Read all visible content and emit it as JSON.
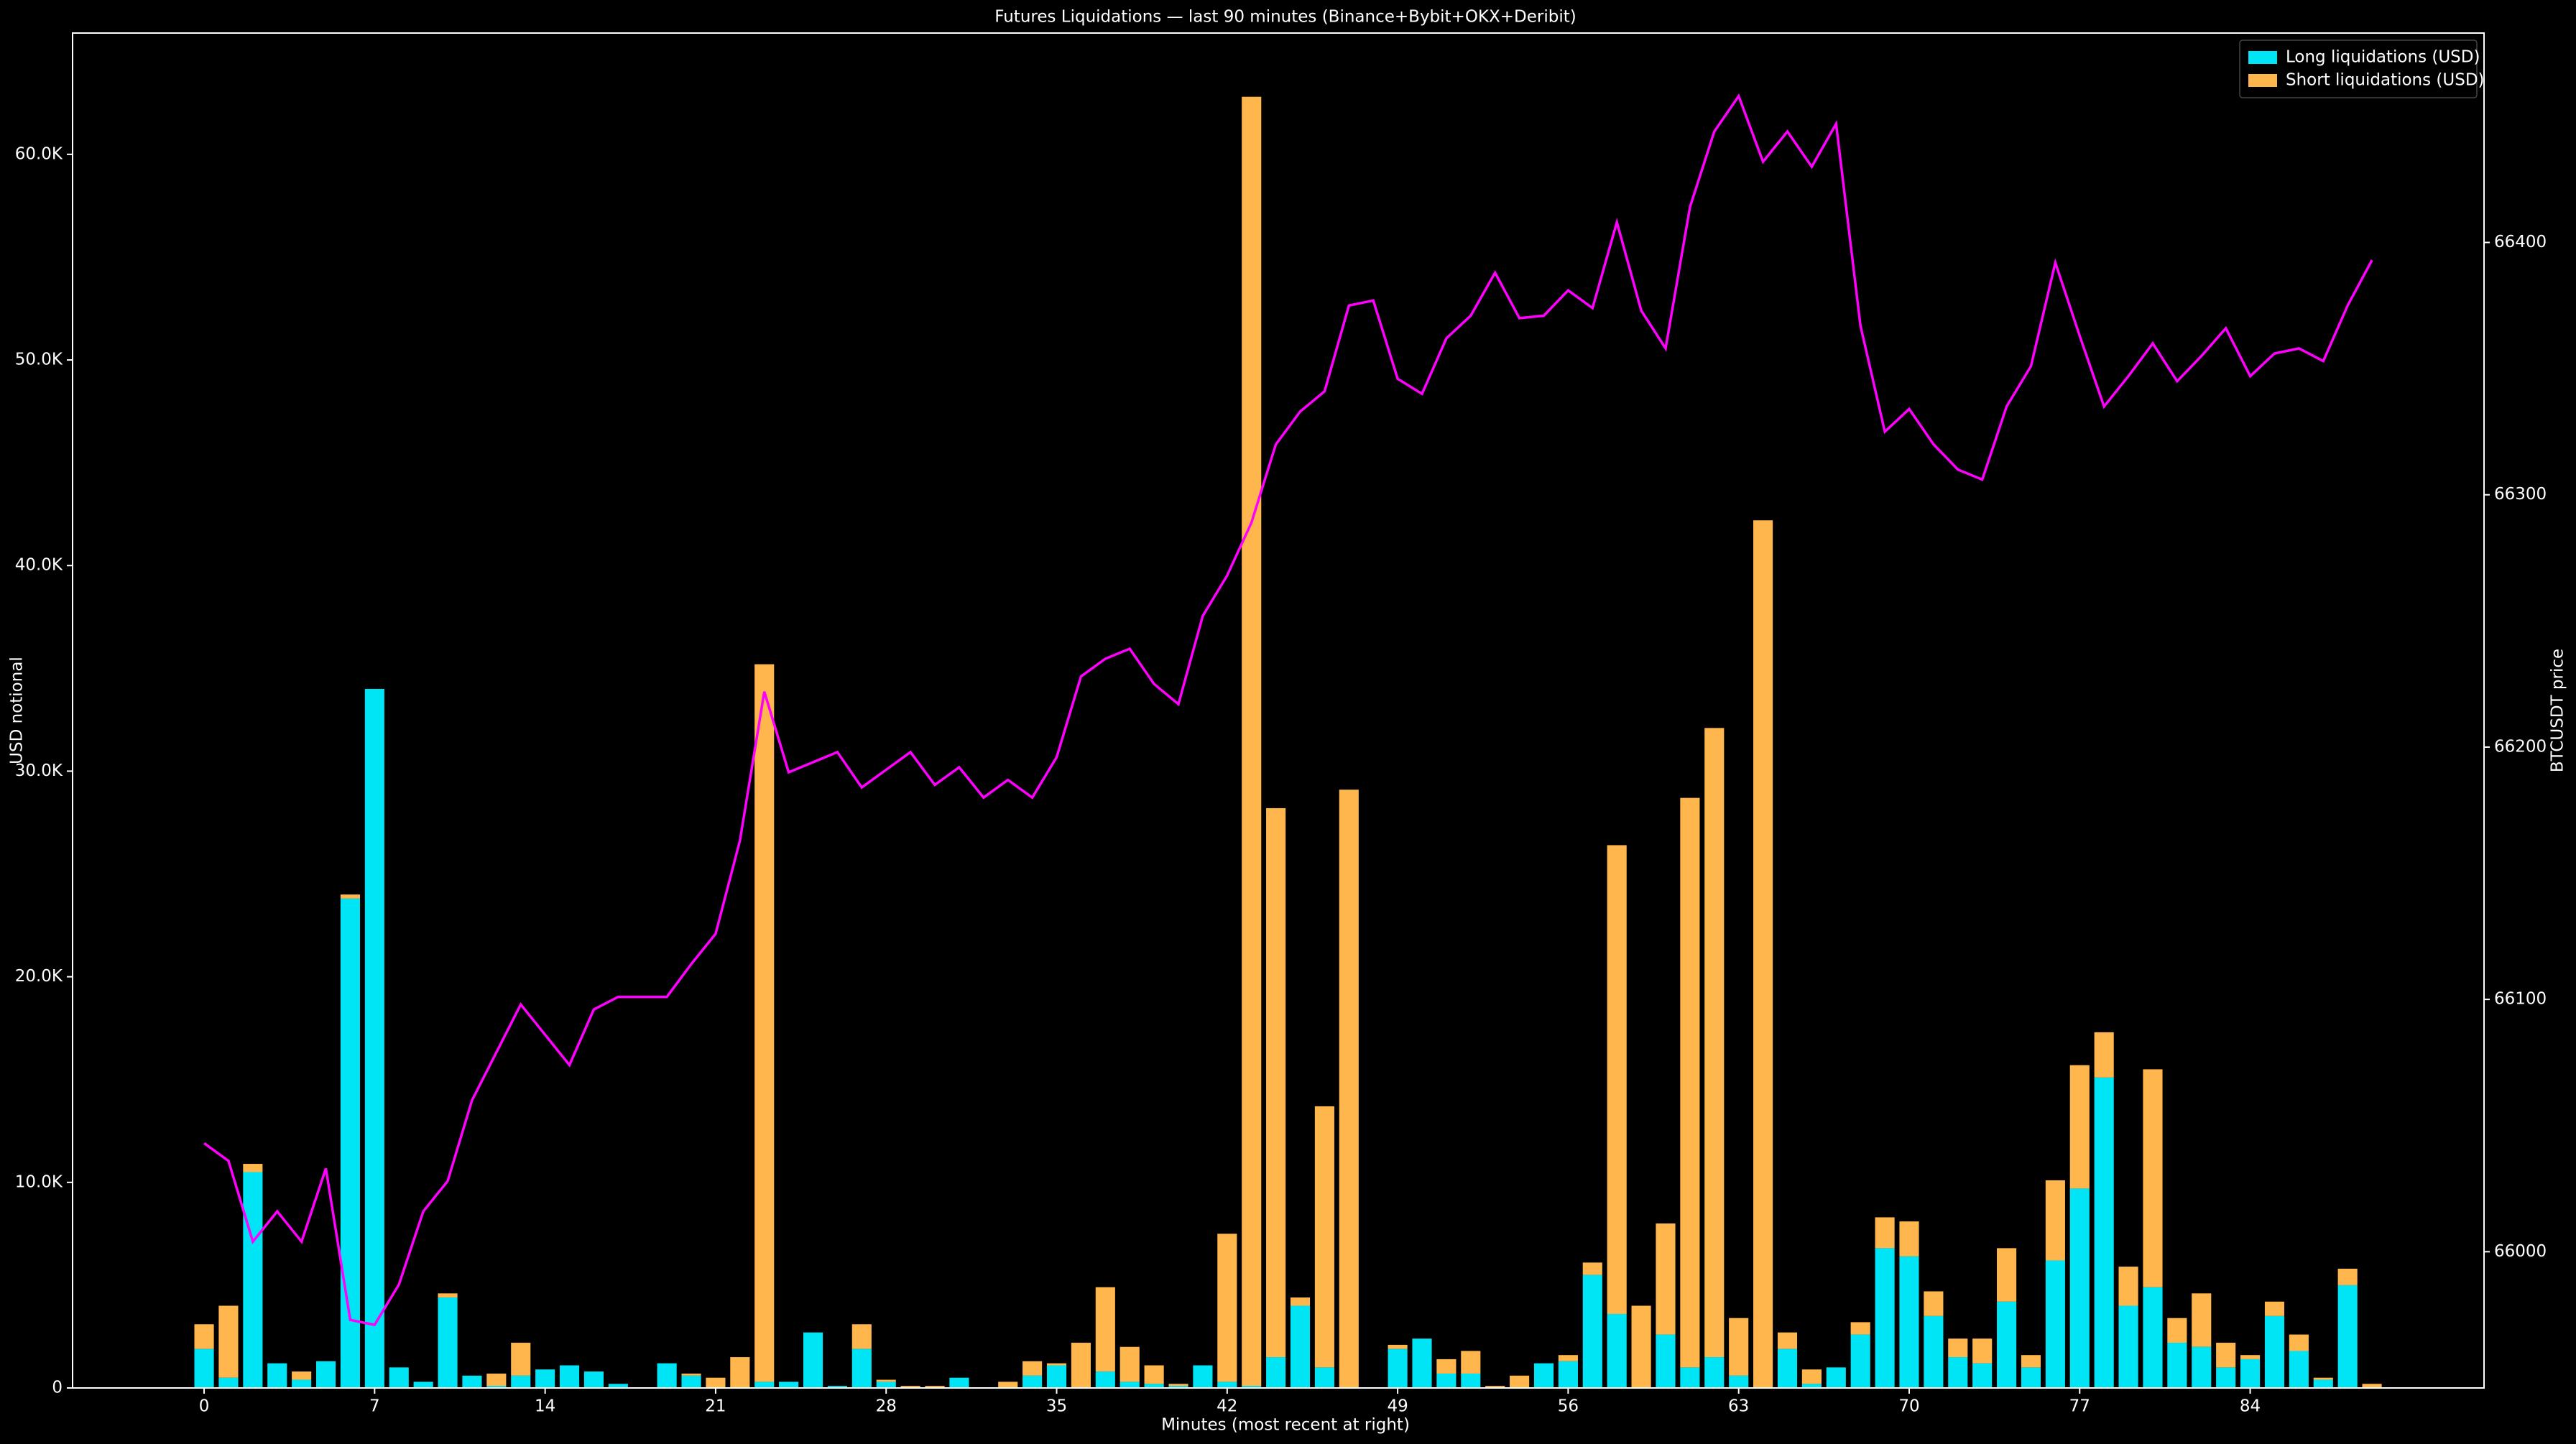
{
  "chart_data": {
    "type": "bar",
    "stacked": true,
    "title": "Futures Liquidations — last 90 minutes (Binance+Bybit+OKX+Deribit)",
    "xlabel": "Minutes (most recent at right)",
    "ylabel": "USD notional",
    "y2label": "BTCUSDT price",
    "x": [
      0,
      1,
      2,
      3,
      4,
      5,
      6,
      7,
      8,
      9,
      10,
      11,
      12,
      13,
      14,
      15,
      16,
      17,
      18,
      19,
      20,
      21,
      22,
      23,
      24,
      25,
      26,
      27,
      28,
      29,
      30,
      31,
      32,
      33,
      34,
      35,
      36,
      37,
      38,
      39,
      40,
      41,
      42,
      43,
      44,
      45,
      46,
      47,
      48,
      49,
      50,
      51,
      52,
      53,
      54,
      55,
      56,
      57,
      58,
      59,
      60,
      61,
      62,
      63,
      64,
      65,
      66,
      67,
      68,
      69,
      70,
      71,
      72,
      73,
      74,
      75,
      76,
      77,
      78,
      79,
      80,
      81,
      82,
      83,
      84,
      85,
      86,
      87,
      88,
      89
    ],
    "xlim": [
      -5.4,
      93.6
    ],
    "xticks": [
      0,
      7,
      14,
      21,
      28,
      35,
      42,
      49,
      56,
      63,
      70,
      77,
      84
    ],
    "ylim": [
      0,
      65900
    ],
    "yticks": [
      0,
      {
        "value": 10000,
        "label": "10.0K"
      },
      {
        "value": 20000,
        "label": "20.0K"
      },
      {
        "value": 30000,
        "label": "30.0K"
      },
      {
        "value": 40000,
        "label": "40.0K"
      },
      {
        "value": 50000,
        "label": "50.0K"
      },
      {
        "value": 60000,
        "label": "60.0K"
      }
    ],
    "y2lim": [
      65946,
      66483
    ],
    "y2ticks": [
      66000,
      66100,
      66200,
      66300,
      66400
    ],
    "legend": "upper right",
    "series": [
      {
        "name": "Long liquidations (USD)",
        "color": "#00e5f5",
        "values": [
          1900,
          500,
          10500,
          1200,
          400,
          1300,
          23800,
          34000,
          1000,
          300,
          4400,
          600,
          100,
          600,
          900,
          1100,
          800,
          200,
          0,
          1200,
          600,
          0,
          0,
          300,
          300,
          2700,
          100,
          1900,
          300,
          0,
          0,
          500,
          0,
          0,
          600,
          1100,
          0,
          800,
          300,
          200,
          100,
          1100,
          300,
          100,
          1500,
          4000,
          1000,
          0,
          0,
          1900,
          2400,
          700,
          700,
          0,
          0,
          1200,
          1300,
          5500,
          3600,
          0,
          2600,
          1000,
          1500,
          600,
          0,
          1900,
          200,
          1000,
          2600,
          6800,
          6400,
          3500,
          1500,
          1200,
          4200,
          1000,
          6200,
          9700,
          15100,
          4000,
          4900,
          2200,
          2000,
          1000,
          1400,
          3500,
          1800,
          400,
          5000,
          0
        ]
      },
      {
        "name": "Short liquidations (USD)",
        "color": "#ffb74d",
        "values": [
          1200,
          3500,
          400,
          0,
          400,
          0,
          200,
          0,
          0,
          0,
          200,
          0,
          600,
          1600,
          0,
          0,
          0,
          0,
          0,
          0,
          100,
          500,
          1500,
          34900,
          0,
          0,
          0,
          1200,
          100,
          100,
          100,
          0,
          0,
          300,
          700,
          100,
          2200,
          4100,
          1700,
          900,
          100,
          0,
          7200,
          62700,
          26700,
          400,
          12700,
          29100,
          0,
          200,
          0,
          700,
          1100,
          100,
          600,
          0,
          300,
          600,
          22800,
          4000,
          5400,
          27700,
          30600,
          2800,
          42200,
          800,
          700,
          0,
          600,
          1500,
          1700,
          1200,
          900,
          1200,
          2600,
          600,
          3900,
          6000,
          2200,
          1900,
          10600,
          1200,
          2600,
          1200,
          200,
          700,
          800,
          100,
          800,
          200
        ]
      },
      {
        "type": "line",
        "axis": "y2",
        "color": "#ff00ff",
        "values": [
          66043,
          66036,
          66004,
          66016,
          66004,
          66033,
          65973,
          65971,
          65987,
          66016,
          66028,
          66060,
          66079,
          66098,
          66086,
          66074,
          66096,
          66101,
          66101,
          66101,
          66114,
          66126,
          66163,
          66222,
          66190,
          66194,
          66198,
          66184,
          66191,
          66198,
          66185,
          66192,
          66180,
          66187,
          66180,
          66196,
          66228,
          66235,
          66239,
          66225,
          66217,
          66252,
          66268,
          66289,
          66320,
          66333,
          66341,
          66375,
          66377,
          66346,
          66340,
          66362,
          66371,
          66388,
          66370,
          66371,
          66381,
          66374,
          66408,
          66373,
          66358,
          66414,
          66444,
          66458,
          66432,
          66444,
          66430,
          66447,
          66367,
          66325,
          66334,
          66320,
          66310,
          66306,
          66335,
          66351,
          66392,
          66363,
          66335,
          66347,
          66360,
          66345,
          66355,
          66366,
          66347,
          66356,
          66358,
          66353,
          66375,
          66393
        ]
      }
    ]
  }
}
